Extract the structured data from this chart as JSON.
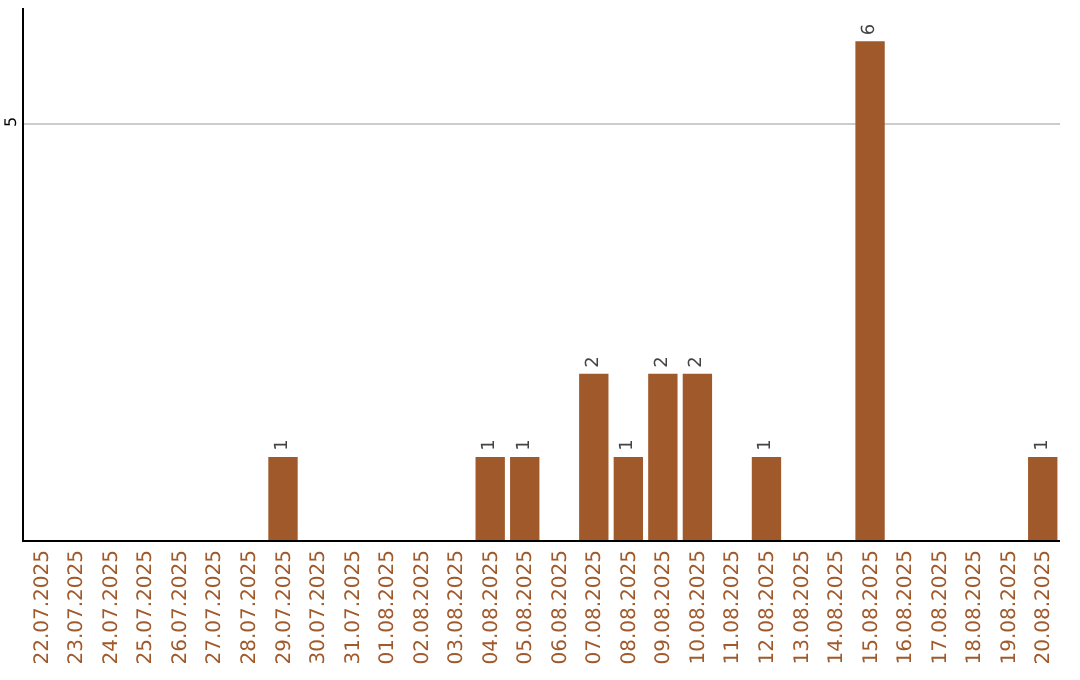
{
  "chart_data": {
    "type": "bar",
    "categories": [
      "22.07.2025",
      "23.07.2025",
      "24.07.2025",
      "25.07.2025",
      "26.07.2025",
      "27.07.2025",
      "28.07.2025",
      "29.07.2025",
      "30.07.2025",
      "31.07.2025",
      "01.08.2025",
      "02.08.2025",
      "03.08.2025",
      "04.08.2025",
      "05.08.2025",
      "06.08.2025",
      "07.08.2025",
      "08.08.2025",
      "09.08.2025",
      "10.08.2025",
      "11.08.2025",
      "12.08.2025",
      "13.08.2025",
      "14.08.2025",
      "15.08.2025",
      "16.08.2025",
      "17.08.2025",
      "18.08.2025",
      "19.08.2025",
      "20.08.2025"
    ],
    "values": [
      0,
      0,
      0,
      0,
      0,
      0,
      0,
      1,
      0,
      0,
      0,
      0,
      0,
      1,
      1,
      0,
      2,
      1,
      2,
      2,
      0,
      1,
      0,
      0,
      6,
      0,
      0,
      0,
      0,
      1
    ],
    "value_labels": [
      null,
      null,
      null,
      null,
      null,
      null,
      null,
      "1",
      null,
      null,
      null,
      null,
      null,
      "1",
      "1",
      null,
      "2",
      "1",
      "2",
      "2",
      null,
      "1",
      null,
      null,
      "6",
      null,
      null,
      null,
      null,
      "1"
    ],
    "color": "#a0592a",
    "ylim": [
      0,
      6.4
    ],
    "yticks": [
      5
    ],
    "grid": "y"
  }
}
